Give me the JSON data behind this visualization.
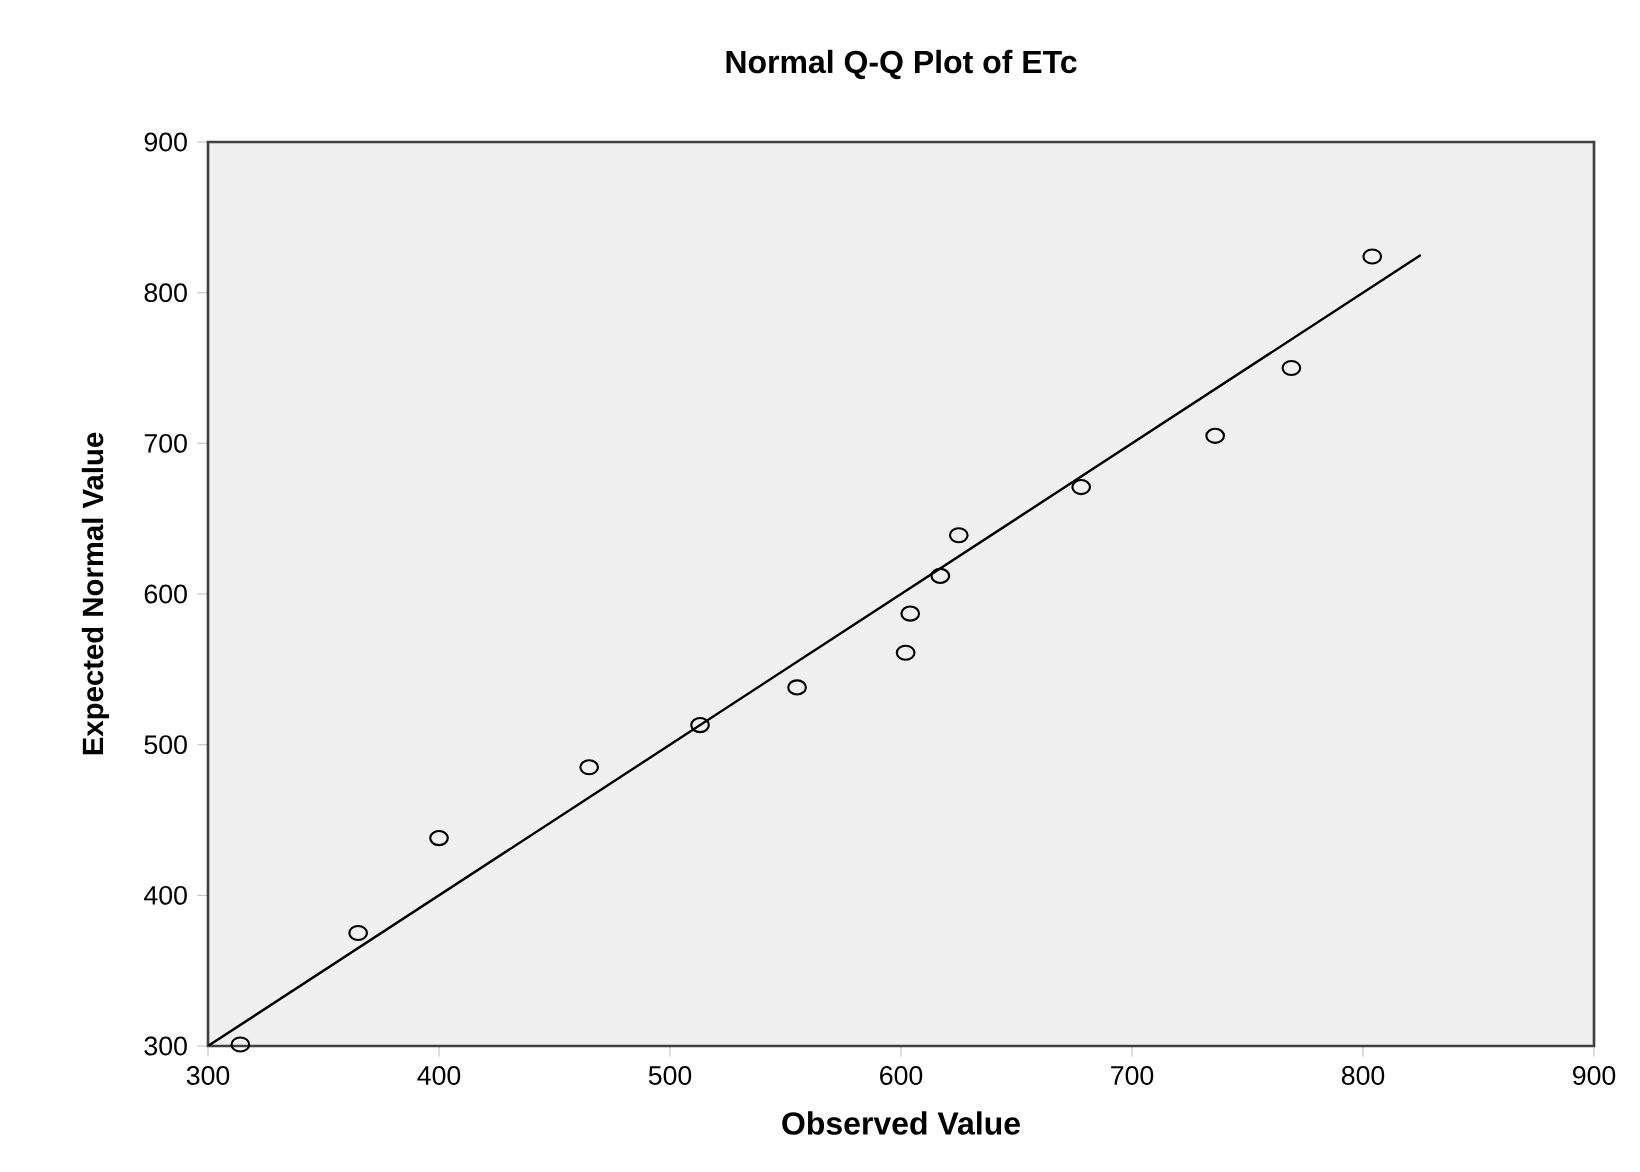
{
  "chart_data": {
    "type": "scatter",
    "title": "Normal Q-Q Plot of ETc",
    "xlabel": "Observed Value",
    "ylabel": "Expected Normal Value",
    "xlim": [
      300,
      900
    ],
    "ylim": [
      300,
      900
    ],
    "xticks": [
      300,
      400,
      500,
      600,
      700,
      800,
      900
    ],
    "yticks": [
      300,
      400,
      500,
      600,
      700,
      800,
      900
    ],
    "grid": false,
    "marker": "circle",
    "series": [
      {
        "type": "scatter",
        "color": "#000000",
        "x": [
          314,
          365,
          400,
          465,
          513,
          555,
          602,
          604,
          617,
          625,
          678,
          736,
          769,
          804
        ],
        "values": [
          301,
          375,
          438,
          485,
          513,
          538,
          561,
          587,
          612,
          639,
          671,
          705,
          750,
          824
        ]
      },
      {
        "type": "line",
        "color": "#000000",
        "marker": "none",
        "line_style": "solid",
        "x": [
          300,
          825
        ],
        "values": [
          300,
          825
        ]
      }
    ]
  }
}
